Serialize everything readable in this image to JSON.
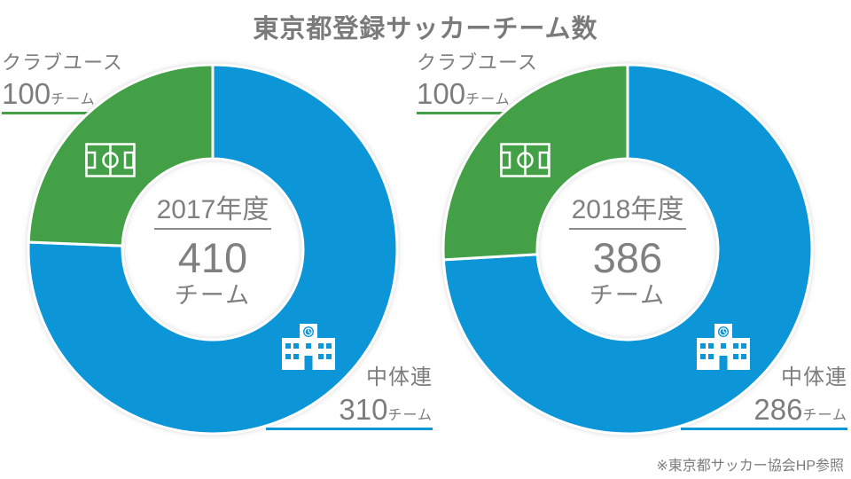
{
  "title": "東京都登録サッカーチーム数",
  "footnote": "※東京都サッカー協会HP参照",
  "colors": {
    "chutairen_blue": "#0c96d8",
    "club_youth_green": "#43a047",
    "text_gray": "#808080"
  },
  "chart_data": [
    {
      "type": "donut",
      "center_label": "2017年度",
      "center_value": "410",
      "center_unit": "チーム",
      "start_angle_deg": 0,
      "direction": "clockwise",
      "segments": [
        {
          "label": "中体連",
          "value": 310,
          "unit": "チーム",
          "color": "#0c96d8",
          "icon": "school-icon"
        },
        {
          "label": "クラブユース",
          "value": 100,
          "unit": "チーム",
          "color": "#43a047",
          "icon": "soccer-field-icon"
        }
      ]
    },
    {
      "type": "donut",
      "center_label": "2018年度",
      "center_value": "386",
      "center_unit": "チーム",
      "start_angle_deg": 0,
      "direction": "clockwise",
      "segments": [
        {
          "label": "中体連",
          "value": 286,
          "unit": "チーム",
          "color": "#0c96d8",
          "icon": "school-icon"
        },
        {
          "label": "クラブユース",
          "value": 100,
          "unit": "チーム",
          "color": "#43a047",
          "icon": "soccer-field-icon"
        }
      ]
    }
  ]
}
